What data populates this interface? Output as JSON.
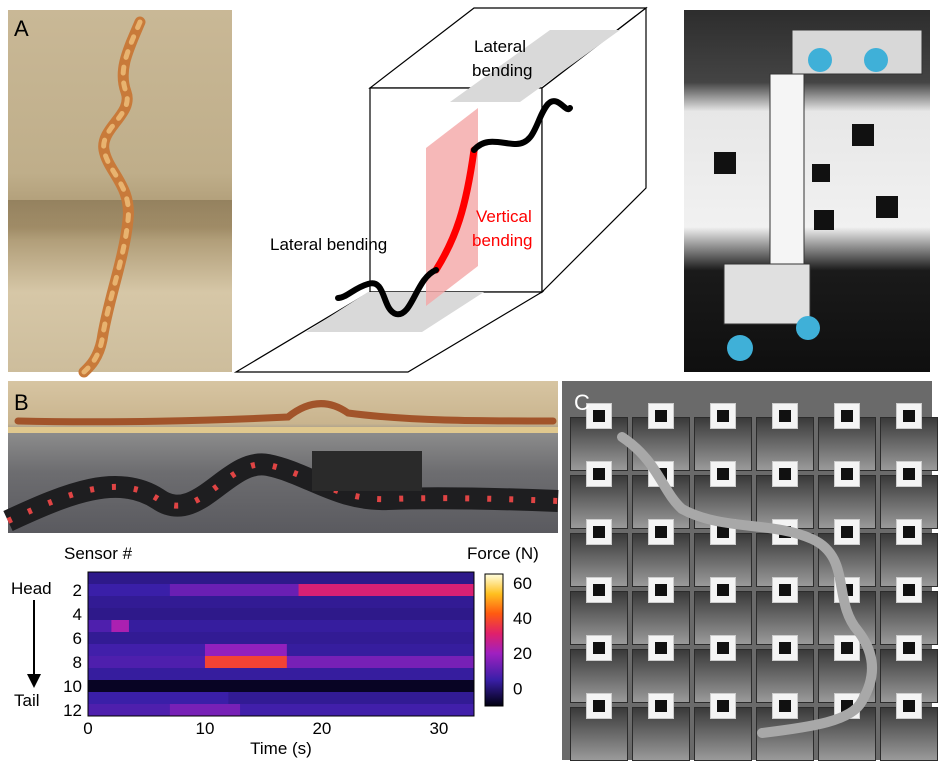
{
  "panel_labels": {
    "a": "A",
    "b": "B",
    "c": "C"
  },
  "diagram": {
    "top_label_line1": "Lateral",
    "top_label_line2": "bending",
    "bottom_label": "Lateral bending",
    "vertical_label_line1": "Vertical",
    "vertical_label_line2": "bending",
    "colors": {
      "body": "#000000",
      "vertical": "#ff0000",
      "shading": "#d9d9d9",
      "vertical_plane": "#f4a6a6"
    }
  },
  "heatmap": {
    "ylabel": "Sensor #",
    "xlabel": "Time (s)",
    "colorbar_label": "Force (N)",
    "head_label": "Head",
    "tail_label": "Tail",
    "y_ticks": [
      "2",
      "4",
      "6",
      "8",
      "10",
      "12"
    ],
    "x_ticks": [
      "0",
      "10",
      "20",
      "30"
    ],
    "colorbar_ticks": [
      "60",
      "40",
      "20",
      "0"
    ]
  },
  "chart_data": {
    "type": "heatmap",
    "xlabel": "Time (s)",
    "ylabel": "Sensor #",
    "colorbar_label": "Force (N)",
    "xlim": [
      0,
      33
    ],
    "ylim": [
      1,
      12
    ],
    "color_range": [
      -10,
      65
    ],
    "x_ticks": [
      0,
      10,
      20,
      30
    ],
    "y_ticks": [
      2,
      4,
      6,
      8,
      10,
      12
    ],
    "rows": [
      {
        "sensor": 1,
        "segments": [
          [
            0,
            33,
            2
          ]
        ]
      },
      {
        "sensor": 2,
        "segments": [
          [
            0,
            7,
            5
          ],
          [
            7,
            18,
            12
          ],
          [
            18,
            33,
            30
          ]
        ]
      },
      {
        "sensor": 3,
        "segments": [
          [
            0,
            33,
            3
          ]
        ]
      },
      {
        "sensor": 4,
        "segments": [
          [
            0,
            33,
            2
          ]
        ]
      },
      {
        "sensor": 5,
        "segments": [
          [
            0,
            2,
            8
          ],
          [
            2,
            3.5,
            22
          ],
          [
            3.5,
            33,
            4
          ]
        ]
      },
      {
        "sensor": 6,
        "segments": [
          [
            0,
            33,
            3
          ]
        ]
      },
      {
        "sensor": 7,
        "segments": [
          [
            0,
            10,
            6
          ],
          [
            10,
            17,
            18
          ],
          [
            17,
            33,
            4
          ]
        ]
      },
      {
        "sensor": 8,
        "segments": [
          [
            0,
            10,
            8
          ],
          [
            10,
            17,
            38
          ],
          [
            17,
            33,
            14
          ]
        ]
      },
      {
        "sensor": 9,
        "segments": [
          [
            0,
            33,
            4
          ]
        ]
      },
      {
        "sensor": 10,
        "segments": [
          [
            0,
            33,
            -8
          ]
        ]
      },
      {
        "sensor": 11,
        "segments": [
          [
            0,
            12,
            5
          ],
          [
            12,
            33,
            3
          ]
        ]
      },
      {
        "sensor": 12,
        "segments": [
          [
            0,
            7,
            8
          ],
          [
            7,
            13,
            14
          ],
          [
            13,
            33,
            6
          ]
        ]
      }
    ]
  }
}
